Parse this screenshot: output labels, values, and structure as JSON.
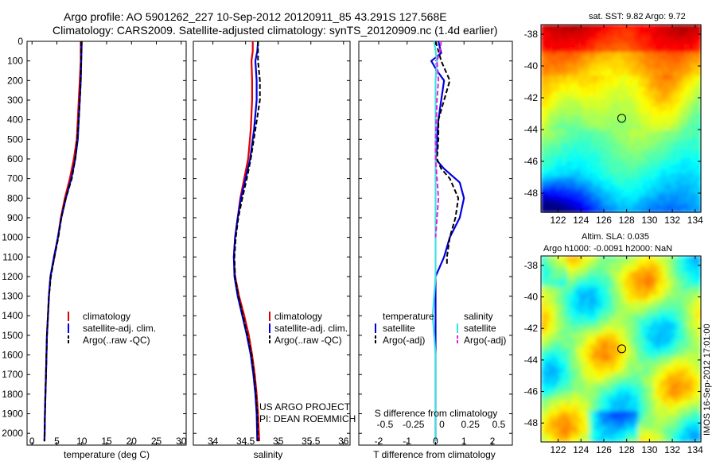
{
  "header": {
    "line1": "Argo profile: AO 5901262_227 10-Sep-2012 20120911_85 43.291S 127.568E",
    "line2": "Climatology: CARS2009. Satellite-adjusted climatology: synTS_20120909.nc (1.4d earlier)"
  },
  "colors": {
    "climatology": "#e00000",
    "satellite": "#0000e0",
    "argo": "#000000",
    "satellite_salinity": "#40e0e0",
    "argo_salinity": "#e020e0"
  },
  "side_text": "IMOS 16-Sep-2012 17:01:00",
  "chart_data": [
    {
      "type": "line",
      "id": "temperature",
      "xlabel": "temperature (deg C)",
      "xlim": [
        -1,
        31
      ],
      "ylim": [
        2060,
        0
      ],
      "xticks": [
        0,
        5,
        10,
        15,
        20,
        25,
        30
      ],
      "yticks": [
        0,
        100,
        200,
        300,
        400,
        500,
        600,
        700,
        800,
        900,
        1000,
        1100,
        1200,
        1300,
        1400,
        1500,
        1600,
        1700,
        1800,
        1900,
        2000
      ],
      "legend": [
        "climatology",
        "satellite-adj. clim.",
        "Argo(..raw -QC)"
      ],
      "legend_position": "lower-center",
      "series": [
        {
          "name": "climatology",
          "x": [
            9.8,
            9.8,
            9.6,
            9.4,
            9.2,
            9.0,
            8.4,
            7.6,
            6.6,
            5.8,
            5.2,
            4.5,
            3.7,
            3.4,
            3.2,
            3.0,
            2.9,
            2.8,
            2.7,
            2.6,
            2.5
          ],
          "y": [
            0,
            100,
            200,
            300,
            400,
            500,
            600,
            700,
            800,
            900,
            1000,
            1100,
            1200,
            1300,
            1400,
            1500,
            1600,
            1700,
            1800,
            1900,
            2040
          ]
        },
        {
          "name": "satellite-adj. clim.",
          "x": [
            10.0,
            9.9,
            9.8,
            9.6,
            9.4,
            9.2,
            8.7,
            7.9,
            6.8,
            5.9,
            5.2,
            4.4,
            3.7,
            3.4,
            3.2,
            3.0,
            2.9,
            2.8,
            2.7,
            2.6,
            2.5
          ],
          "y": [
            0,
            100,
            200,
            300,
            400,
            500,
            600,
            700,
            800,
            900,
            1000,
            1100,
            1200,
            1300,
            1400,
            1500,
            1600,
            1700,
            1800,
            1900,
            2040
          ]
        },
        {
          "name": "Argo(..raw -QC)",
          "x": [
            9.9,
            9.9,
            9.8,
            9.6,
            9.4,
            9.1,
            8.7,
            8.0,
            6.8,
            5.9,
            5.3,
            4.5,
            3.8,
            3.4,
            3.2,
            3.0,
            2.9,
            2.8,
            2.7,
            2.6,
            2.5
          ],
          "y": [
            0,
            100,
            200,
            300,
            400,
            500,
            600,
            700,
            800,
            900,
            1000,
            1100,
            1200,
            1300,
            1400,
            1500,
            1600,
            1700,
            1800,
            1900,
            2040
          ]
        }
      ]
    },
    {
      "type": "line",
      "id": "salinity",
      "xlabel": "salinity",
      "xlim": [
        33.7,
        36.1
      ],
      "ylim": [
        2060,
        0
      ],
      "xticks": [
        34,
        34.5,
        35,
        35.5,
        36
      ],
      "legend": [
        "climatology",
        "satellite-adj. clim.",
        "Argo(..raw -QC)"
      ],
      "legend_position": "lower-right",
      "annotation": [
        "US ARGO PROJECT",
        "PI: DEAN ROEMMICH"
      ],
      "series": [
        {
          "name": "climatology",
          "x": [
            34.61,
            34.61,
            34.59,
            34.6,
            34.6,
            34.58,
            34.54,
            34.48,
            34.42,
            34.38,
            34.34,
            34.32,
            34.34,
            34.4,
            34.48,
            34.55,
            34.6,
            34.64,
            34.67,
            34.69,
            34.71
          ],
          "y": [
            0,
            50,
            100,
            200,
            300,
            450,
            600,
            700,
            800,
            900,
            1000,
            1100,
            1200,
            1300,
            1400,
            1500,
            1600,
            1700,
            1800,
            1900,
            2040
          ]
        },
        {
          "name": "satellite-adj. clim.",
          "x": [
            34.69,
            34.68,
            34.65,
            34.67,
            34.67,
            34.63,
            34.57,
            34.5,
            34.43,
            34.38,
            34.34,
            34.32,
            34.33,
            34.38,
            34.45,
            34.52,
            34.58,
            34.62,
            34.65,
            34.67,
            34.68
          ],
          "y": [
            0,
            50,
            100,
            200,
            300,
            450,
            600,
            700,
            800,
            900,
            1000,
            1100,
            1200,
            1300,
            1400,
            1500,
            1600,
            1700,
            1800,
            1900,
            2040
          ]
        },
        {
          "name": "Argo(..raw -QC)",
          "x": [
            34.69,
            34.69,
            34.69,
            34.72,
            34.72,
            34.65,
            34.58,
            34.52,
            34.45,
            34.39,
            34.35,
            34.33,
            34.34,
            34.39,
            34.46,
            34.53,
            34.59,
            34.63,
            34.66,
            34.68,
            34.69
          ],
          "y": [
            0,
            50,
            100,
            200,
            300,
            450,
            600,
            700,
            800,
            900,
            1000,
            1100,
            1200,
            1300,
            1400,
            1500,
            1600,
            1700,
            1800,
            1900,
            2040
          ]
        }
      ]
    },
    {
      "type": "line",
      "id": "difference",
      "xlabel": "T difference from climatology",
      "top_axis_label": "S difference from climatology",
      "xlim": [
        -2.7,
        2.7
      ],
      "ylim": [
        2060,
        0
      ],
      "xticks": [
        -2,
        -1,
        0,
        1,
        2
      ],
      "top_ticks": [
        "-0.5",
        "-0.25",
        "0",
        "0.25",
        "0.5"
      ],
      "legend_titles": [
        "temperature",
        "salinity"
      ],
      "legend": [
        "satellite",
        "Argo(-adj)",
        "satellite",
        "Argo(-adj)"
      ],
      "legend_position": "lower-center",
      "series": [
        {
          "name": "temperature satellite",
          "x": [
            0.1,
            0.2,
            -0.15,
            0.05,
            0.3,
            0.2,
            0.1,
            0.05,
            0.05,
            0.0,
            0.3,
            0.85,
            1.0,
            0.85,
            0.5,
            0.3,
            0.0,
            0.0,
            0.0,
            0.0,
            0.0,
            0.0,
            0.0,
            0.0
          ],
          "y": [
            0,
            60,
            100,
            150,
            200,
            300,
            400,
            500,
            550,
            600,
            650,
            720,
            800,
            900,
            1000,
            1100,
            1200,
            1300,
            1400,
            1500,
            1600,
            1700,
            1800,
            2040
          ]
        },
        {
          "name": "temperature Argo(-adj)",
          "x": [
            0.0,
            0.1,
            0.2,
            0.5,
            0.3,
            0.1,
            0.1,
            0.05,
            0.2,
            0.5,
            0.8,
            0.7,
            0.5,
            0.45,
            0.4,
            0.4
          ],
          "y": [
            0,
            50,
            100,
            200,
            300,
            400,
            500,
            600,
            650,
            700,
            800,
            900,
            1000,
            1050,
            1100,
            1140
          ]
        },
        {
          "name": "salinity satellite",
          "x": [
            -0.05,
            0.05,
            0.0,
            0.0,
            0.0,
            0.0,
            0.0,
            0.0,
            0.0,
            0.0,
            0.0,
            0.0,
            0.0,
            -0.05,
            -0.1,
            -0.05,
            0.0,
            0.0,
            0.0,
            0.0
          ],
          "y": [
            0,
            100,
            200,
            300,
            400,
            500,
            600,
            700,
            800,
            900,
            1000,
            1100,
            1200,
            1300,
            1400,
            1500,
            1600,
            1700,
            1800,
            2040
          ]
        },
        {
          "name": "salinity Argo(-adj)",
          "x": [
            0.2,
            0.15,
            0.05,
            0.1,
            0.05,
            0.0,
            0.0,
            0.05,
            0.1,
            0.05,
            0.0
          ],
          "y": [
            0,
            50,
            100,
            200,
            300,
            500,
            600,
            700,
            800,
            900,
            1000
          ]
        }
      ]
    },
    {
      "type": "heatmap",
      "id": "sst-map",
      "title": "sat. SST: 9.82 Argo: 9.72",
      "xlim": [
        120.5,
        134.5
      ],
      "ylim": [
        -49.2,
        -37.4
      ],
      "xticks": [
        122,
        124,
        126,
        128,
        130,
        132,
        134
      ],
      "yticks": [
        -38,
        -40,
        -42,
        -44,
        -46,
        -48
      ],
      "marker": {
        "lon": 127.568,
        "lat": -43.291
      }
    },
    {
      "type": "heatmap",
      "id": "sla-map",
      "title": [
        "Altim. SLA: 0.035",
        "Argo h1000: -0.0091 h2000: NaN"
      ],
      "xlim": [
        120.5,
        134.5
      ],
      "ylim": [
        -49.2,
        -37.4
      ],
      "xticks": [
        122,
        124,
        126,
        128,
        130,
        132,
        134
      ],
      "yticks": [
        -38,
        -40,
        -42,
        -44,
        -46,
        -48
      ],
      "marker": {
        "lon": 127.568,
        "lat": -43.291
      }
    }
  ]
}
